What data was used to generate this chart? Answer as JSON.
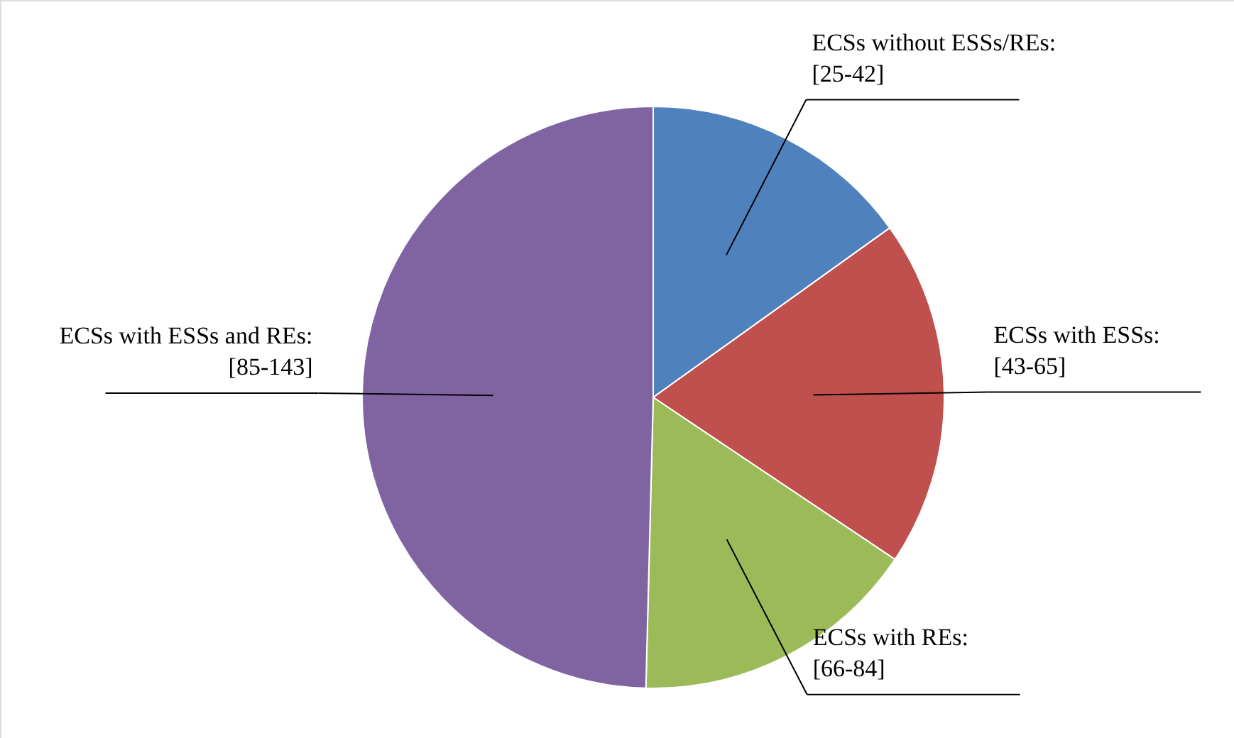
{
  "chart_data": {
    "type": "pie",
    "categories": [
      "ECSs without ESSs/REs:\n[25-42]",
      "ECSs with ESSs:\n[43-65]",
      "ECSs with REs:\n[66-84]",
      "ECSs with ESSs and REs:\n[85-143]"
    ],
    "values": [
      15.1,
      19.3,
      16.0,
      49.6
    ],
    "colors": [
      "#4f81bd",
      "#c0504d",
      "#9bbb59",
      "#8064a2"
    ]
  }
}
